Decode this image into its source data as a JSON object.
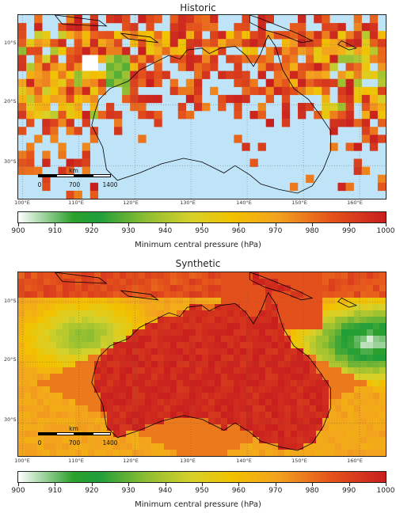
{
  "panels": {
    "historic": {
      "title": "Historic"
    },
    "synthetic": {
      "title": "Synthetic"
    }
  },
  "lat_labels": [
    "10°S",
    "20°S",
    "30°S"
  ],
  "lon_labels": [
    "100°E",
    "110°E",
    "120°E",
    "130°E",
    "140°E",
    "150°E",
    "160°E"
  ],
  "colorbar": {
    "label": "Minimum central pressure (hPa)",
    "ticks": [
      "900",
      "910",
      "920",
      "930",
      "940",
      "950",
      "960",
      "970",
      "980",
      "990",
      "1000"
    ],
    "range": [
      900,
      1000
    ],
    "colormap": [
      "#ffffff",
      "#2ca02c",
      "#8fbe32",
      "#f2c200",
      "#f3a51e",
      "#e5541c",
      "#c81e1e"
    ]
  },
  "scalebar": {
    "unit": "km",
    "labels": [
      "0",
      "700",
      "1400"
    ]
  },
  "map_extent": {
    "lon": [
      100,
      165
    ],
    "lat": [
      -35,
      -3
    ]
  },
  "ocean_color": "#bfe3f7",
  "coastline_color": "#000000"
}
